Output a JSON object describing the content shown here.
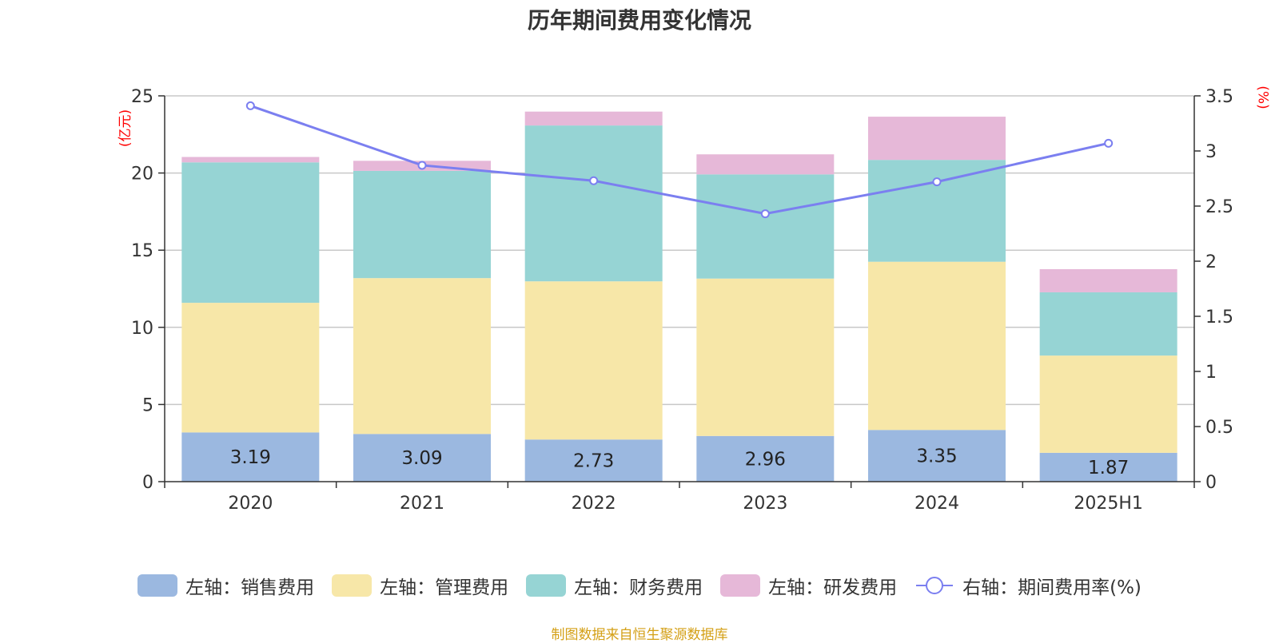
{
  "chart_data": {
    "type": "bar",
    "title": "历年期间费用变化情况",
    "left_axis_unit": "(亿元)",
    "right_axis_unit": "(%)",
    "categories": [
      "2020",
      "2021",
      "2022",
      "2023",
      "2024",
      "2025H1"
    ],
    "ylim_left": [
      0,
      25
    ],
    "yticks_left": [
      "0",
      "5",
      "10",
      "15",
      "20",
      "25"
    ],
    "ylim_right": [
      0,
      3.5
    ],
    "yticks_right": [
      "0",
      "0.5",
      "1",
      "1.5",
      "2",
      "2.5",
      "3",
      "3.5"
    ],
    "series": [
      {
        "name": "左轴：销售费用",
        "type": "bar",
        "axis": "left",
        "color": "#9bb8e0",
        "values": [
          3.19,
          3.09,
          2.73,
          2.96,
          3.35,
          1.87
        ],
        "labels": [
          "3.19",
          "3.09",
          "2.73",
          "2.96",
          "3.35",
          "1.87"
        ]
      },
      {
        "name": "左轴：管理费用",
        "type": "bar",
        "axis": "left",
        "color": "#f7e7a8",
        "values": [
          8.4,
          10.1,
          10.25,
          10.2,
          10.9,
          6.3
        ]
      },
      {
        "name": "左轴：财务费用",
        "type": "bar",
        "axis": "left",
        "color": "#96d4d4",
        "values": [
          9.1,
          6.95,
          10.1,
          6.75,
          6.6,
          4.1
        ]
      },
      {
        "name": "左轴：研发费用",
        "type": "bar",
        "axis": "left",
        "color": "#e6b8d8",
        "values": [
          0.35,
          0.65,
          0.9,
          1.3,
          2.8,
          1.5
        ]
      },
      {
        "name": "右轴：期间费用率(%)",
        "type": "line",
        "axis": "right",
        "color": "#7b7ff0",
        "values": [
          3.41,
          2.87,
          2.73,
          2.43,
          2.72,
          3.07
        ]
      }
    ],
    "grid": true,
    "legend_position": "bottom"
  },
  "source_note": "制图数据来自恒生聚源数据库"
}
